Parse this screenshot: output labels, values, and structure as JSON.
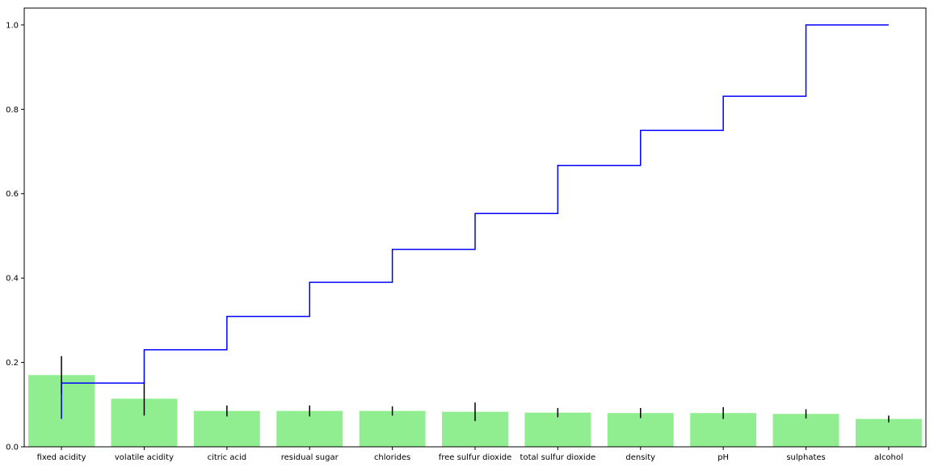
{
  "chart_data": {
    "type": "bar",
    "categories": [
      "fixed acidity",
      "volatile acidity",
      "citric acid",
      "residual sugar",
      "chlorides",
      "free sulfur dioxide",
      "total sulfur dioxide",
      "density",
      "pH",
      "sulphates",
      "alcohol"
    ],
    "series": [
      {
        "type": "bar",
        "values": [
          0.17,
          0.114,
          0.085,
          0.085,
          0.085,
          0.083,
          0.081,
          0.08,
          0.08,
          0.078,
          0.066
        ],
        "error": [
          0.045,
          0.04,
          0.013,
          0.013,
          0.011,
          0.022,
          0.011,
          0.012,
          0.014,
          0.011,
          0.008
        ],
        "color": "#90ee90",
        "error_color": "#000000"
      },
      {
        "type": "step",
        "values": [
          0.151,
          0.23,
          0.309,
          0.39,
          0.468,
          0.553,
          0.667,
          0.75,
          0.831,
          1.0,
          1.0
        ],
        "start_value": 0.066,
        "color": "#0000ff"
      }
    ],
    "yticks": [
      "0.0",
      "0.2",
      "0.4",
      "0.6",
      "0.8",
      "1.0"
    ],
    "ylim": [
      0,
      1.04
    ],
    "title": "",
    "xlabel": "",
    "ylabel": "",
    "grid": false,
    "legend": false
  }
}
